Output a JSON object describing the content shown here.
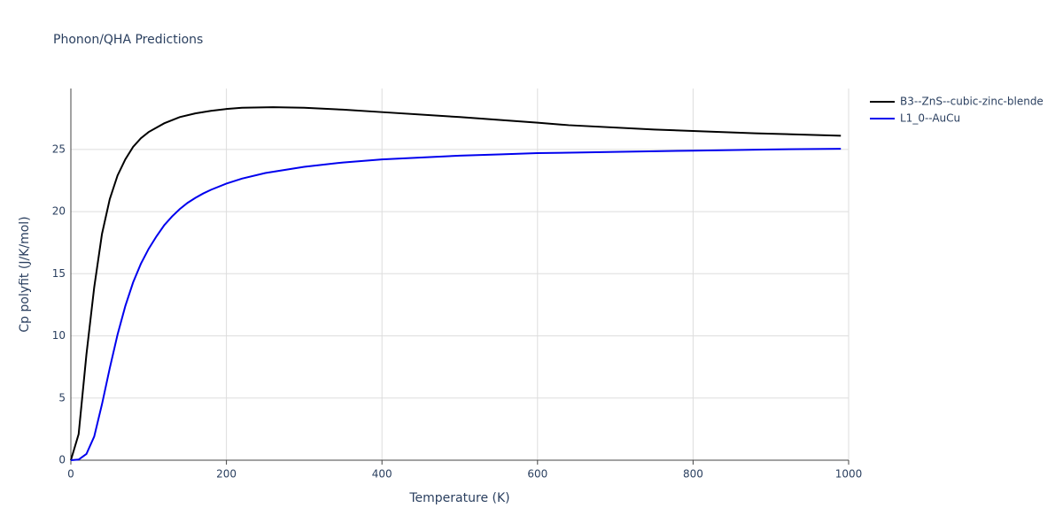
{
  "chart_data": {
    "type": "line",
    "title": "Phonon/QHA Predictions",
    "x_label": "Temperature (K)",
    "y_label": "Cp polyfit (J/K/mol)",
    "xlim": [
      0,
      1000
    ],
    "xticks": [
      0,
      200,
      400,
      600,
      800,
      1000
    ],
    "ylim": [
      0,
      29.9
    ],
    "yticks": [
      0,
      5,
      10,
      15,
      20,
      25
    ],
    "grid": true,
    "legend": "right",
    "series": [
      {
        "name": "B3--ZnS--cubic-zinc-blende",
        "color": "#000000",
        "x": [
          0,
          10,
          20,
          30,
          40,
          50,
          60,
          70,
          80,
          90,
          100,
          120,
          140,
          160,
          180,
          200,
          220,
          260,
          300,
          350,
          400,
          500,
          600,
          640,
          750,
          880,
          990
        ],
        "values": [
          0,
          2.1,
          8.5,
          13.9,
          18.2,
          21,
          22.9,
          24.2,
          25.2,
          25.9,
          26.4,
          27.1,
          27.6,
          27.9,
          28.1,
          28.25,
          28.35,
          28.4,
          28.35,
          28.2,
          28.0,
          27.6,
          27.15,
          26.95,
          26.6,
          26.3,
          26.1
        ]
      },
      {
        "name": "L1_0--AuCu",
        "color": "#0000ee",
        "x": [
          0,
          10,
          20,
          30,
          40,
          50,
          60,
          70,
          80,
          90,
          100,
          110,
          120,
          130,
          140,
          150,
          160,
          170,
          180,
          200,
          220,
          250,
          300,
          350,
          400,
          450,
          500,
          550,
          600,
          650,
          700,
          800,
          900,
          990
        ],
        "values": [
          0,
          0.05,
          0.5,
          1.9,
          4.5,
          7.4,
          10.1,
          12.4,
          14.3,
          15.8,
          17.0,
          18.0,
          18.9,
          19.6,
          20.2,
          20.7,
          21.1,
          21.45,
          21.75,
          22.25,
          22.65,
          23.1,
          23.6,
          23.95,
          24.2,
          24.35,
          24.5,
          24.6,
          24.7,
          24.75,
          24.8,
          24.9,
          25.0,
          25.05
        ]
      }
    ]
  }
}
